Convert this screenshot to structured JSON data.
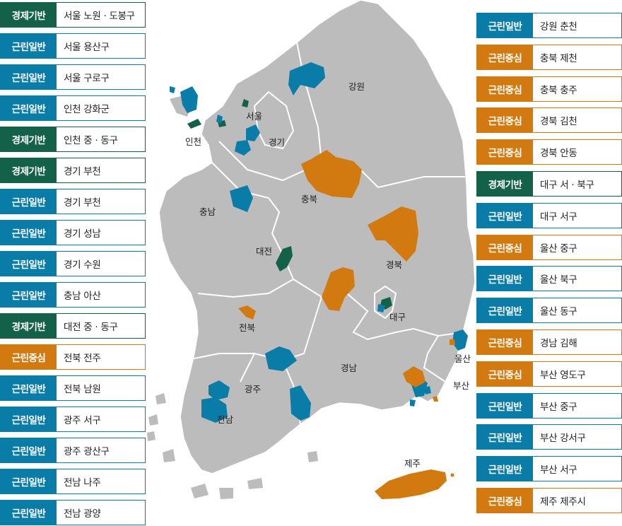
{
  "legend_types": {
    "eco": {
      "label": "경제기반",
      "color": "#136149"
    },
    "gen": {
      "label": "근린일반",
      "color": "#0a7ca8"
    },
    "cen": {
      "label": "근린중심",
      "color": "#d2790f"
    }
  },
  "left_list": [
    {
      "type": "eco",
      "tag": "경제기반",
      "name": "서울 노원 · 도봉구"
    },
    {
      "type": "gen",
      "tag": "근린일반",
      "name": "서울 용산구"
    },
    {
      "type": "gen",
      "tag": "근린일반",
      "name": "서울 구로구"
    },
    {
      "type": "gen",
      "tag": "근린일반",
      "name": "인천 강화군"
    },
    {
      "type": "eco",
      "tag": "경제기반",
      "name": "인천 중 · 동구"
    },
    {
      "type": "eco",
      "tag": "경제기반",
      "name": "경기 부천"
    },
    {
      "type": "gen",
      "tag": "근린일반",
      "name": "경기 부천"
    },
    {
      "type": "gen",
      "tag": "근린일반",
      "name": "경기 성남"
    },
    {
      "type": "gen",
      "tag": "근린일반",
      "name": "경기 수원"
    },
    {
      "type": "gen",
      "tag": "근린일반",
      "name": "충남 아산"
    },
    {
      "type": "eco",
      "tag": "경제기반",
      "name": "대전 중 · 동구"
    },
    {
      "type": "cen",
      "tag": "근린중심",
      "name": "전북 전주"
    },
    {
      "type": "gen",
      "tag": "근린일반",
      "name": "전북 남원"
    },
    {
      "type": "gen",
      "tag": "근린일반",
      "name": "광주 서구"
    },
    {
      "type": "gen",
      "tag": "근린일반",
      "name": "광주 광산구"
    },
    {
      "type": "gen",
      "tag": "근린일반",
      "name": "전남 나주"
    },
    {
      "type": "gen",
      "tag": "근린일반",
      "name": "전남 광양"
    }
  ],
  "right_list": [
    {
      "type": "gen",
      "tag": "근린일반",
      "name": "강원 춘천"
    },
    {
      "type": "cen",
      "tag": "근린중심",
      "name": "충북 제천"
    },
    {
      "type": "cen",
      "tag": "근린중심",
      "name": "충북 충주"
    },
    {
      "type": "cen",
      "tag": "근린중심",
      "name": "경북 김천"
    },
    {
      "type": "cen",
      "tag": "근린중심",
      "name": "경북 안동"
    },
    {
      "type": "eco",
      "tag": "경제기반",
      "name": "대구 서 · 북구"
    },
    {
      "type": "gen",
      "tag": "근린일반",
      "name": "대구 서구"
    },
    {
      "type": "cen",
      "tag": "근린중심",
      "name": "울산 중구"
    },
    {
      "type": "gen",
      "tag": "근린일반",
      "name": "울산 북구"
    },
    {
      "type": "gen",
      "tag": "근린일반",
      "name": "울산 동구"
    },
    {
      "type": "cen",
      "tag": "근린중심",
      "name": "경남 김해"
    },
    {
      "type": "cen",
      "tag": "근린중심",
      "name": "부산 영도구"
    },
    {
      "type": "gen",
      "tag": "근린일반",
      "name": "부산 중구"
    },
    {
      "type": "gen",
      "tag": "근린일반",
      "name": "부산 강서구"
    },
    {
      "type": "gen",
      "tag": "근린일반",
      "name": "부산 서구"
    },
    {
      "type": "cen",
      "tag": "근린중심",
      "name": "제주 제주시"
    }
  ],
  "map": {
    "land_color": "#bcbcbc",
    "border_color": "#ffffff",
    "labels": {
      "gangwon": "강원",
      "seoul": "서울",
      "incheon": "인천",
      "gyeonggi": "경기",
      "chungbuk": "충북",
      "chungnam": "충남",
      "daejeon": "대전",
      "gyeongbuk": "경북",
      "daegu": "대구",
      "jeonbuk": "전북",
      "gyeongnam": "경남",
      "ulsan": "울산",
      "busan": "부산",
      "gwangju": "광주",
      "jeonnam": "전남",
      "jeju": "제주"
    }
  }
}
